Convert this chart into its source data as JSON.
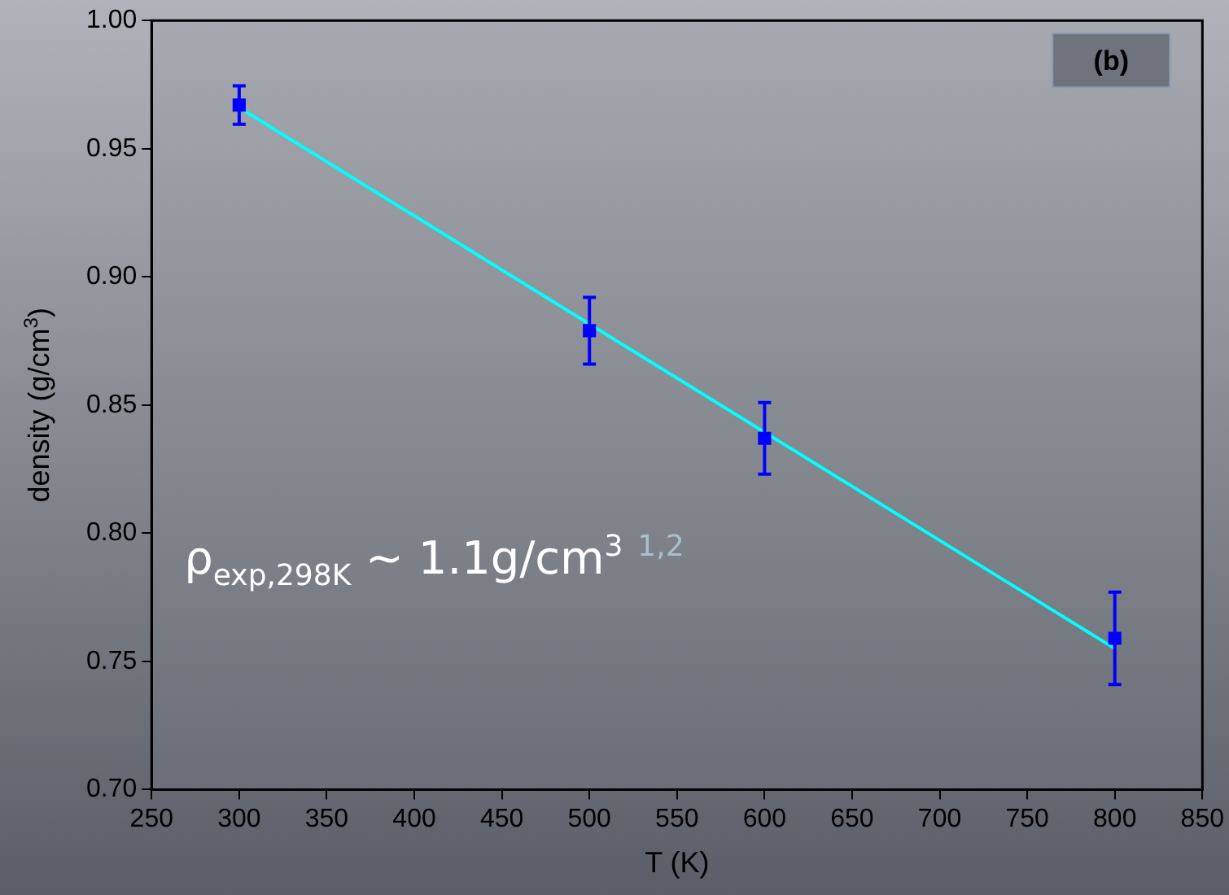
{
  "chart_data": {
    "type": "scatter",
    "xlabel": "T (K)",
    "ylabel": "density (g/cm$^{3}$)",
    "xlim": [
      250,
      850
    ],
    "xticks": [
      250,
      300,
      350,
      400,
      450,
      500,
      550,
      600,
      650,
      700,
      750,
      800,
      850
    ],
    "ylim": [
      0.7,
      1.0
    ],
    "yticks": [
      {
        "value": 0.7,
        "label": "0.70"
      },
      {
        "value": 0.75,
        "label": "0.75"
      },
      {
        "value": 0.8,
        "label": "0.80"
      },
      {
        "value": 0.85,
        "label": "0.85"
      },
      {
        "value": 0.9,
        "label": "0.90"
      },
      {
        "value": 0.95,
        "label": "0.95"
      },
      {
        "value": 1.0,
        "label": "1.00"
      }
    ],
    "grid": false,
    "legend": false,
    "marker": "square",
    "series": [
      {
        "type": "scatter",
        "color": "#0000ff",
        "x": [
          300,
          500,
          600,
          800
        ],
        "values": [
          0.967,
          0.879,
          0.837,
          0.759
        ],
        "errors": [
          0.0075,
          0.013,
          0.014,
          0.018
        ]
      },
      {
        "type": "line",
        "color": "#00ffff",
        "x": [
          300,
          800
        ],
        "values": [
          0.966,
          0.755
        ],
        "marker": "none"
      }
    ],
    "annotations": [
      "(b)",
      "ρ$_{exp,298K}$ ~ 1.1g/cm$^{3}$ $^{1,2}$"
    ]
  }
}
